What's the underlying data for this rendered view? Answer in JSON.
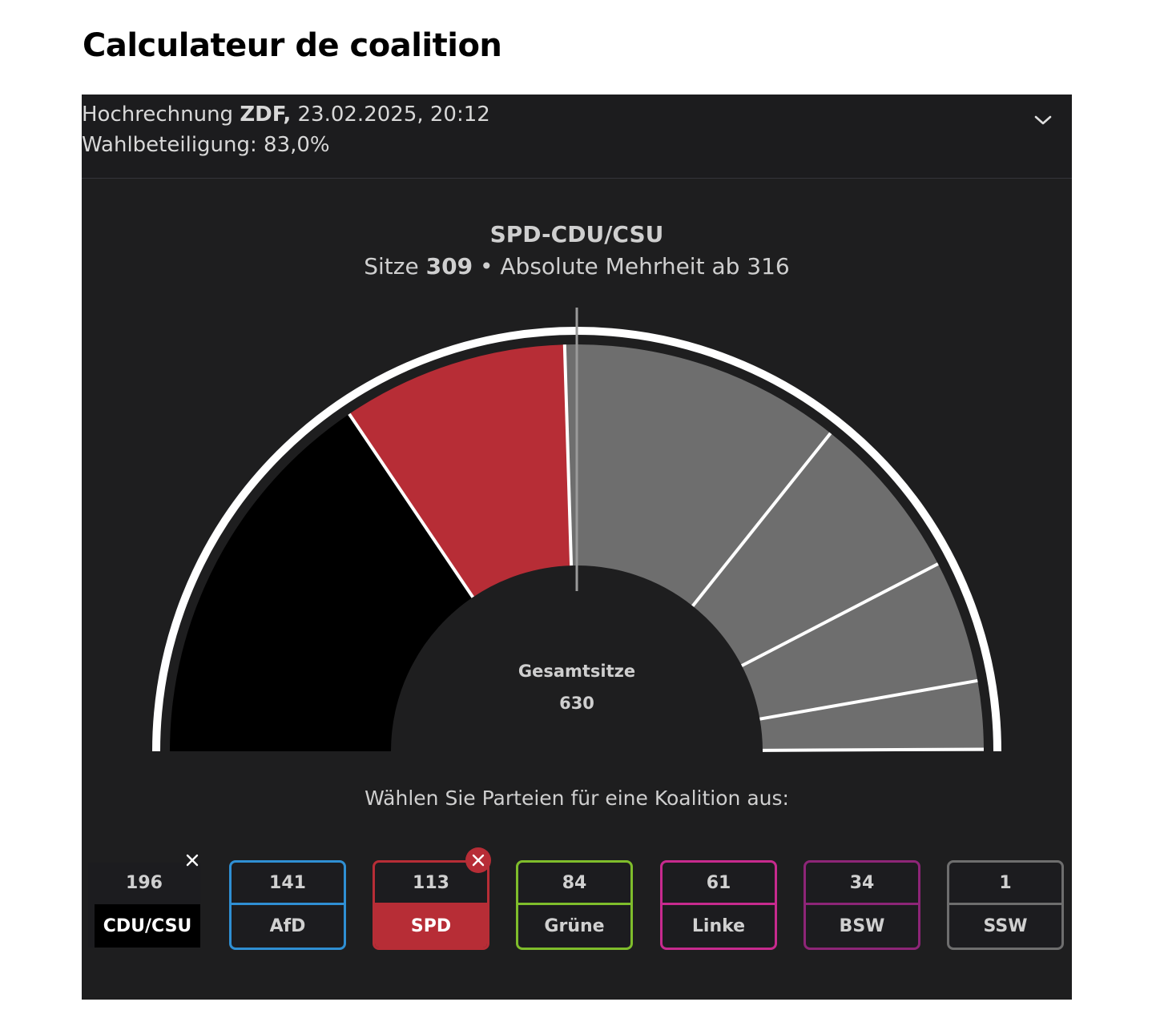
{
  "page": {
    "title": "Calculateur de coalition"
  },
  "header": {
    "projection_prefix": "Hochrechnung",
    "source": "ZDF,",
    "datetime": "23.02.2025, 20:12",
    "turnout": "Wahlbeteiligung: 83,0%"
  },
  "coalition": {
    "name": "SPD-CDU/CSU",
    "seats_label": "Sitze",
    "seats": "309",
    "separator": "•",
    "majority_text": "Absolute Mehrheit ab 316"
  },
  "chart": {
    "total_label": "Gesamtsitze",
    "total_value": "630",
    "prompt": "Wählen Sie Parteien für eine Koalition aus:"
  },
  "chart_data": {
    "type": "pie",
    "shape": "semicircle",
    "total_seats": 630,
    "majority_threshold": 316,
    "categories": [
      "CDU/CSU",
      "SPD",
      "AfD",
      "Grüne",
      "Linke",
      "BSW",
      "SSW"
    ],
    "values": [
      196,
      113,
      141,
      84,
      61,
      34,
      1
    ],
    "selected": [
      "CDU/CSU",
      "SPD"
    ],
    "colors": [
      "#000000",
      "#b72d36",
      "#6e6e6e",
      "#6e6e6e",
      "#6e6e6e",
      "#6e6e6e",
      "#6e6e6e"
    ]
  },
  "parties": [
    {
      "key": "cdu",
      "name": "CDU/CSU",
      "seats": "196",
      "color": "#000000",
      "selected": true
    },
    {
      "key": "afd",
      "name": "AfD",
      "seats": "141",
      "color": "#2f8fd3",
      "selected": false
    },
    {
      "key": "spd",
      "name": "SPD",
      "seats": "113",
      "color": "#b72d36",
      "selected": true
    },
    {
      "key": "gruene",
      "name": "Grüne",
      "seats": "84",
      "color": "#7fbd2b",
      "selected": false
    },
    {
      "key": "linke",
      "name": "Linke",
      "seats": "61",
      "color": "#c72a8e",
      "selected": false
    },
    {
      "key": "bsw",
      "name": "BSW",
      "seats": "34",
      "color": "#8d2577",
      "selected": false
    },
    {
      "key": "ssw",
      "name": "SSW",
      "seats": "1",
      "color": "#6e6e6e",
      "selected": false
    }
  ]
}
